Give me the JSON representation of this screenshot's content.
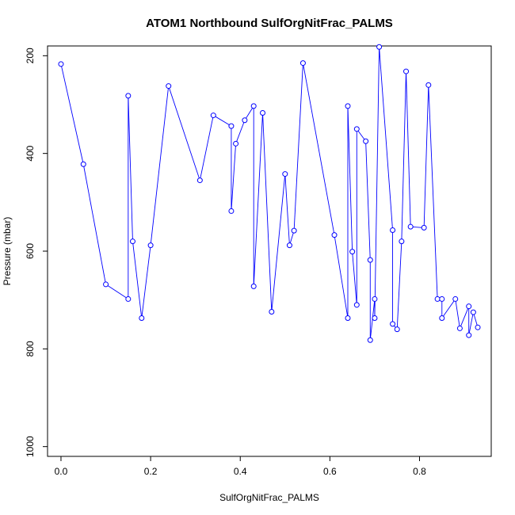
{
  "chart_data": {
    "type": "line",
    "title": "ATOM1 Northbound SulfOrgNitFrac_PALMS",
    "xlabel": "SulfOrgNitFrac_PALMS",
    "ylabel": "Pressure (mbar)",
    "xlim": [
      -0.03,
      0.96
    ],
    "ylim": [
      1020,
      180
    ],
    "y_reversed": true,
    "x_ticks": [
      0.0,
      0.2,
      0.4,
      0.6,
      0.8
    ],
    "x_tick_labels": [
      "0.0",
      "0.2",
      "0.4",
      "0.6",
      "0.8"
    ],
    "y_ticks": [
      200,
      400,
      600,
      800,
      1000
    ],
    "y_tick_labels": [
      "200",
      "400",
      "600",
      "800",
      "1000"
    ],
    "grid": false,
    "legend": "none",
    "colors": {
      "series": "#0000ff",
      "frame": "#000000"
    },
    "series": [
      {
        "marker": "open-circle",
        "points": [
          [
            0.0,
            217
          ],
          [
            0.05,
            422
          ],
          [
            0.1,
            668
          ],
          [
            0.15,
            698
          ],
          [
            0.15,
            282
          ],
          [
            0.16,
            580
          ],
          [
            0.18,
            737
          ],
          [
            0.2,
            588
          ],
          [
            0.24,
            262
          ],
          [
            0.31,
            455
          ],
          [
            0.34,
            322
          ],
          [
            0.38,
            344
          ],
          [
            0.38,
            518
          ],
          [
            0.39,
            380
          ],
          [
            0.41,
            332
          ],
          [
            0.43,
            303
          ],
          [
            0.43,
            672
          ],
          [
            0.45,
            317
          ],
          [
            0.47,
            724
          ],
          [
            0.5,
            442
          ],
          [
            0.51,
            588
          ],
          [
            0.52,
            558
          ],
          [
            0.54,
            215
          ],
          [
            0.61,
            567
          ],
          [
            0.64,
            737
          ],
          [
            0.64,
            303
          ],
          [
            0.65,
            601
          ],
          [
            0.66,
            710
          ],
          [
            0.66,
            350
          ],
          [
            0.68,
            375
          ],
          [
            0.69,
            618
          ],
          [
            0.69,
            782
          ],
          [
            0.7,
            698
          ],
          [
            0.7,
            737
          ],
          [
            0.71,
            182
          ],
          [
            0.74,
            557
          ],
          [
            0.74,
            749
          ],
          [
            0.75,
            760
          ],
          [
            0.76,
            580
          ],
          [
            0.77,
            232
          ],
          [
            0.78,
            550
          ],
          [
            0.81,
            552
          ],
          [
            0.82,
            260
          ],
          [
            0.84,
            698
          ],
          [
            0.85,
            698
          ],
          [
            0.85,
            737
          ],
          [
            0.88,
            698
          ],
          [
            0.89,
            758
          ],
          [
            0.91,
            713
          ],
          [
            0.91,
            772
          ],
          [
            0.92,
            725
          ],
          [
            0.93,
            756
          ]
        ]
      }
    ]
  }
}
